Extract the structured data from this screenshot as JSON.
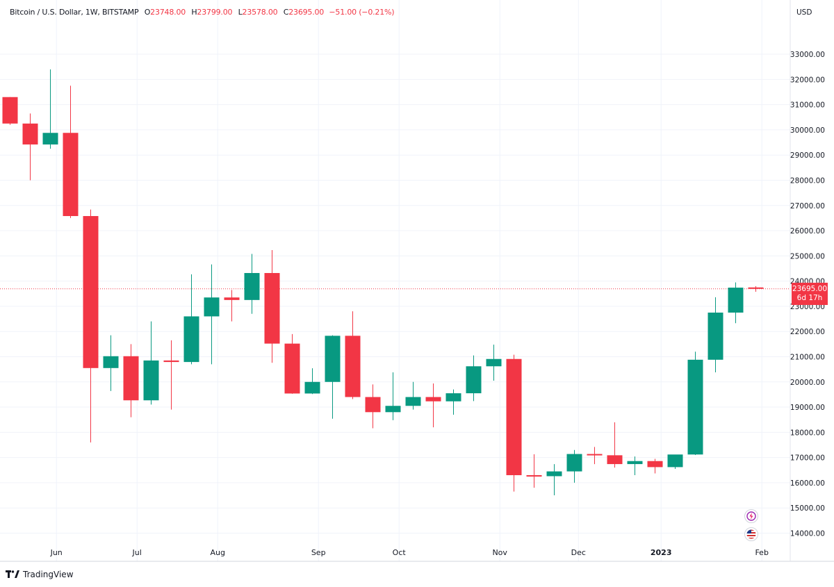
{
  "header": {
    "symbol": "Bitcoin / U.S. Dollar, 1W, BITSTAMP",
    "o_label": "O",
    "o_value": "23748.00",
    "h_label": "H",
    "h_value": "23799.00",
    "l_label": "L",
    "l_value": "23578.00",
    "c_label": "C",
    "c_value": "23695.00",
    "change": "−51.00 (−0.21%)"
  },
  "axis": {
    "currency": "USD"
  },
  "price_tag": {
    "price": "23695.00",
    "countdown": "6d 17h"
  },
  "footer": {
    "brand": "TradingView"
  },
  "colors": {
    "up": "#089981",
    "down": "#f23645",
    "grid": "#f0f3fa",
    "text": "#131722"
  },
  "icons": [
    "lightning-icon",
    "us-flag-icon"
  ],
  "chart_data": {
    "type": "candlestick",
    "interval": "1W",
    "y_range": [
      13600,
      34600
    ],
    "y_ticks": [
      "14000.00",
      "15000.00",
      "16000.00",
      "17000.00",
      "18000.00",
      "19000.00",
      "20000.00",
      "21000.00",
      "22000.00",
      "23000.00",
      "24000.00",
      "25000.00",
      "26000.00",
      "27000.00",
      "28000.00",
      "29000.00",
      "30000.00",
      "31000.00",
      "32000.00",
      "33000.00"
    ],
    "x_ticks": [
      "Jun",
      "Jul",
      "Aug",
      "Sep",
      "Oct",
      "Nov",
      "Dec",
      "2023",
      "Feb"
    ],
    "x_tick_week_index": [
      2.3,
      6.3,
      10.3,
      15.3,
      19.3,
      24.3,
      28.2,
      32.3,
      37.3
    ],
    "last_price": 23695,
    "candles": [
      {
        "o": 31300,
        "h": 31300,
        "l": 30200,
        "c": 30250
      },
      {
        "o": 30250,
        "h": 30650,
        "l": 28000,
        "c": 29420
      },
      {
        "o": 29420,
        "h": 32400,
        "l": 29250,
        "c": 29880
      },
      {
        "o": 29880,
        "h": 31750,
        "l": 26500,
        "c": 26580
      },
      {
        "o": 26580,
        "h": 26840,
        "l": 17600,
        "c": 20550
      },
      {
        "o": 20550,
        "h": 21850,
        "l": 19640,
        "c": 21020
      },
      {
        "o": 21020,
        "h": 21500,
        "l": 18600,
        "c": 19270
      },
      {
        "o": 19270,
        "h": 22400,
        "l": 19100,
        "c": 20850
      },
      {
        "o": 20850,
        "h": 21650,
        "l": 18900,
        "c": 20790
      },
      {
        "o": 20790,
        "h": 24270,
        "l": 20700,
        "c": 22600
      },
      {
        "o": 22600,
        "h": 24660,
        "l": 20700,
        "c": 23350
      },
      {
        "o": 23350,
        "h": 23650,
        "l": 22400,
        "c": 23250
      },
      {
        "o": 23250,
        "h": 25080,
        "l": 22700,
        "c": 24320
      },
      {
        "o": 24320,
        "h": 25230,
        "l": 20760,
        "c": 21520
      },
      {
        "o": 21520,
        "h": 21900,
        "l": 19530,
        "c": 19540
      },
      {
        "o": 19540,
        "h": 20540,
        "l": 19520,
        "c": 20000
      },
      {
        "o": 20000,
        "h": 21850,
        "l": 18540,
        "c": 21830
      },
      {
        "o": 21830,
        "h": 22800,
        "l": 19320,
        "c": 19400
      },
      {
        "o": 19400,
        "h": 19900,
        "l": 18160,
        "c": 18800
      },
      {
        "o": 18800,
        "h": 20380,
        "l": 18480,
        "c": 19050
      },
      {
        "o": 19050,
        "h": 20000,
        "l": 18900,
        "c": 19400
      },
      {
        "o": 19400,
        "h": 19940,
        "l": 18200,
        "c": 19230
      },
      {
        "o": 19230,
        "h": 19700,
        "l": 18700,
        "c": 19550
      },
      {
        "o": 19550,
        "h": 21050,
        "l": 19240,
        "c": 20620
      },
      {
        "o": 20620,
        "h": 21480,
        "l": 20050,
        "c": 20910
      },
      {
        "o": 20910,
        "h": 21080,
        "l": 15650,
        "c": 16300
      },
      {
        "o": 16300,
        "h": 17130,
        "l": 15800,
        "c": 16260
      },
      {
        "o": 16260,
        "h": 16740,
        "l": 15500,
        "c": 16450
      },
      {
        "o": 16450,
        "h": 17300,
        "l": 16000,
        "c": 17140
      },
      {
        "o": 17140,
        "h": 17420,
        "l": 16740,
        "c": 17090
      },
      {
        "o": 17090,
        "h": 18400,
        "l": 16600,
        "c": 16740
      },
      {
        "o": 16740,
        "h": 17040,
        "l": 16300,
        "c": 16860
      },
      {
        "o": 16860,
        "h": 16950,
        "l": 16370,
        "c": 16620
      },
      {
        "o": 16620,
        "h": 17100,
        "l": 16550,
        "c": 17120
      },
      {
        "o": 17120,
        "h": 21200,
        "l": 17100,
        "c": 20880
      },
      {
        "o": 20880,
        "h": 23360,
        "l": 20380,
        "c": 22750
      },
      {
        "o": 22750,
        "h": 23950,
        "l": 22330,
        "c": 23740
      },
      {
        "o": 23748,
        "h": 23799,
        "l": 23578,
        "c": 23695
      }
    ]
  }
}
